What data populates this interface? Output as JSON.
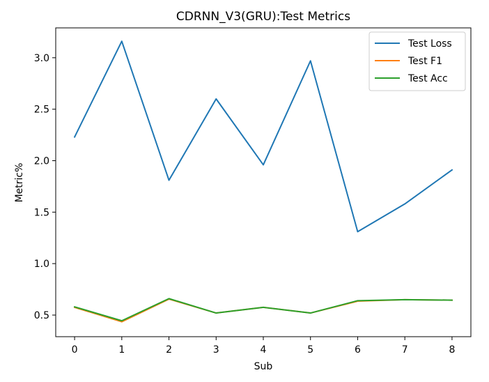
{
  "chart_data": {
    "type": "line",
    "title": "CDRNN_V3(GRU):Test Metrics",
    "xlabel": "Sub",
    "ylabel": "Metric%",
    "x": [
      0,
      1,
      2,
      3,
      4,
      5,
      6,
      7,
      8
    ],
    "xlim": [
      -0.4,
      8.4
    ],
    "ylim": [
      0.29,
      3.29
    ],
    "xticks": [
      0,
      1,
      2,
      3,
      4,
      5,
      6,
      7,
      8
    ],
    "yticks": [
      0.5,
      1.0,
      1.5,
      2.0,
      2.5,
      3.0
    ],
    "ytick_labels": [
      "0.5",
      "1.0",
      "1.5",
      "2.0",
      "2.5",
      "3.0"
    ],
    "grid": false,
    "legend_position": "top-right",
    "series": [
      {
        "name": "Test Loss",
        "color": "#1f77b4",
        "values": [
          2.23,
          3.16,
          1.81,
          2.6,
          1.96,
          2.97,
          1.31,
          1.58,
          1.91
        ]
      },
      {
        "name": "Test F1",
        "color": "#ff7f0e",
        "values": [
          0.575,
          0.435,
          0.655,
          0.52,
          0.575,
          0.52,
          0.635,
          0.65,
          0.645
        ]
      },
      {
        "name": "Test Acc",
        "color": "#2ca02c",
        "values": [
          0.58,
          0.445,
          0.66,
          0.52,
          0.575,
          0.52,
          0.64,
          0.65,
          0.645
        ]
      }
    ]
  }
}
